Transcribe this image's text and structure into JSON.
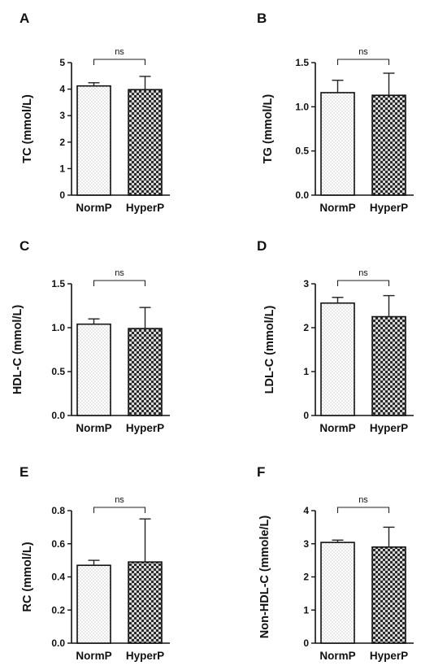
{
  "figure": {
    "background": "#ffffff",
    "ink": "#111111"
  },
  "chart_data": [
    {
      "panel": "A",
      "type": "bar",
      "categories": [
        "NormP",
        "HyperP"
      ],
      "values": [
        4.12,
        3.98
      ],
      "errors": [
        0.12,
        0.5
      ],
      "ylabel": "TC (mmol/L)",
      "ylim": [
        0,
        5
      ],
      "yticks": [
        0,
        1,
        2,
        3,
        4,
        5
      ],
      "ytick_labels": [
        "0",
        "1",
        "2",
        "3",
        "4",
        "5"
      ],
      "annotation": "ns"
    },
    {
      "panel": "B",
      "type": "bar",
      "categories": [
        "NormP",
        "HyperP"
      ],
      "values": [
        1.16,
        1.13
      ],
      "errors": [
        0.14,
        0.25
      ],
      "ylabel": "TG (mmol/L)",
      "ylim": [
        0,
        1.5
      ],
      "yticks": [
        0,
        0.5,
        1.0,
        1.5
      ],
      "ytick_labels": [
        "0.0",
        "0.5",
        "1.0",
        "1.5"
      ],
      "annotation": "ns"
    },
    {
      "panel": "C",
      "type": "bar",
      "categories": [
        "NormP",
        "HyperP"
      ],
      "values": [
        1.04,
        0.99
      ],
      "errors": [
        0.06,
        0.24
      ],
      "ylabel": "HDL-C (mmol/L)",
      "ylim": [
        0,
        1.5
      ],
      "yticks": [
        0,
        0.5,
        1.0,
        1.5
      ],
      "ytick_labels": [
        "0.0",
        "0.5",
        "1.0",
        "1.5"
      ],
      "annotation": "ns"
    },
    {
      "panel": "D",
      "type": "bar",
      "categories": [
        "NormP",
        "HyperP"
      ],
      "values": [
        2.56,
        2.25
      ],
      "errors": [
        0.13,
        0.48
      ],
      "ylabel": "LDL-C (mmol/L)",
      "ylim": [
        0,
        3
      ],
      "yticks": [
        0,
        1,
        2,
        3
      ],
      "ytick_labels": [
        "0",
        "1",
        "2",
        "3"
      ],
      "annotation": "ns"
    },
    {
      "panel": "E",
      "type": "bar",
      "categories": [
        "NormP",
        "HyperP"
      ],
      "values": [
        0.47,
        0.49
      ],
      "errors": [
        0.03,
        0.26
      ],
      "ylabel": "RC (mmol/L)",
      "ylim": [
        0,
        0.8
      ],
      "yticks": [
        0,
        0.2,
        0.4,
        0.6,
        0.8
      ],
      "ytick_labels": [
        "0.0",
        "0.2",
        "0.4",
        "0.6",
        "0.8"
      ],
      "annotation": "ns"
    },
    {
      "panel": "F",
      "type": "bar",
      "categories": [
        "NormP",
        "HyperP"
      ],
      "values": [
        3.04,
        2.9
      ],
      "errors": [
        0.07,
        0.6
      ],
      "ylabel": "Non-HDL-C (mmole/L)",
      "ylim": [
        0,
        4
      ],
      "yticks": [
        0,
        1,
        2,
        3,
        4
      ],
      "ytick_labels": [
        "0",
        "1",
        "2",
        "3",
        "4"
      ],
      "annotation": "ns"
    }
  ]
}
